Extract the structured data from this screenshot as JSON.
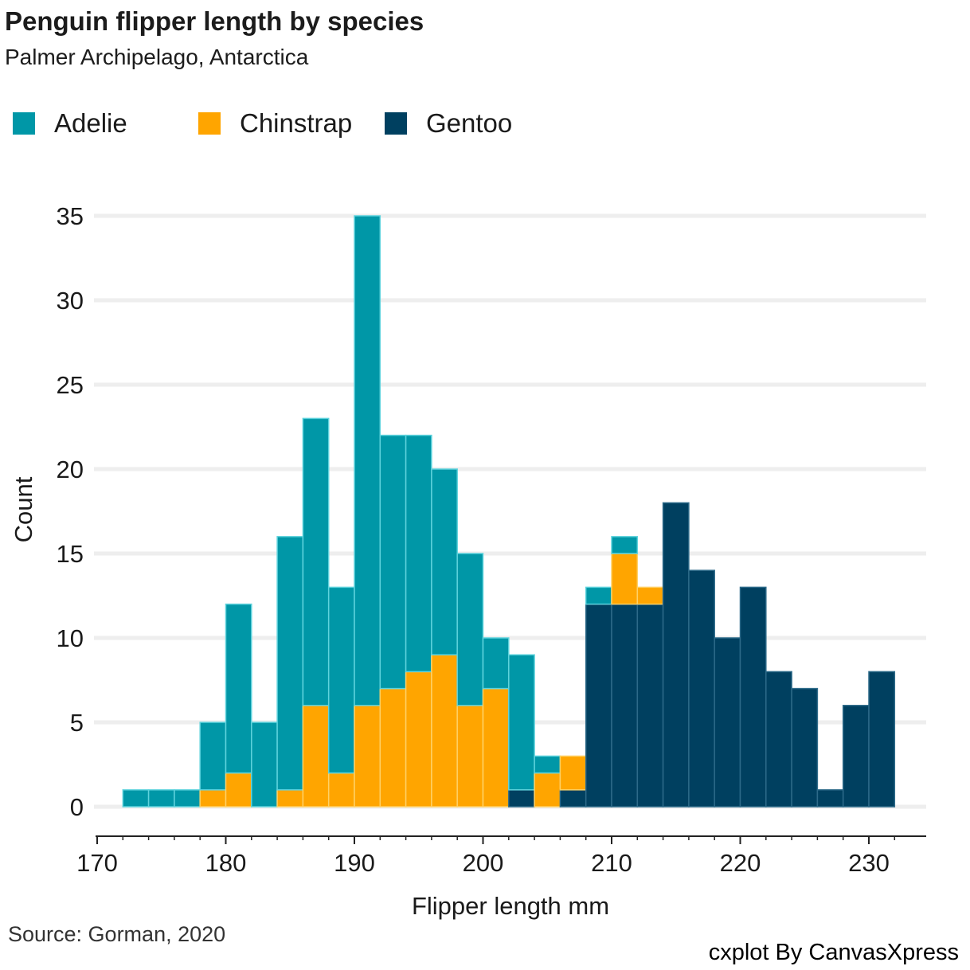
{
  "title": "Penguin flipper length by species",
  "subtitle": "Palmer Archipelago, Antarctica",
  "source": "Source: Gorman, 2020",
  "credit": "cxplot By CanvasXpress",
  "colors": {
    "Adelie": "#0097a7",
    "Chinstrap": "#ffa500",
    "Gentoo": "#004060",
    "grid": "#eeeeee",
    "axis": "#222222"
  },
  "chart_data": {
    "type": "bar",
    "stacked": true,
    "bin_width": 2,
    "xlabel": "Flipper length mm",
    "ylabel": "Count",
    "xlim": [
      170,
      234
    ],
    "ylim": [
      0,
      35
    ],
    "xticks": [
      170,
      180,
      190,
      200,
      210,
      220,
      230
    ],
    "yticks": [
      0,
      5,
      10,
      15,
      20,
      25,
      30,
      35
    ],
    "legend_position": "top-left",
    "bins": [
      172,
      174,
      176,
      178,
      180,
      182,
      184,
      186,
      188,
      190,
      192,
      194,
      196,
      198,
      200,
      202,
      204,
      206,
      208,
      210,
      212,
      214,
      216,
      218,
      220,
      222,
      224,
      226,
      228,
      230
    ],
    "series": [
      {
        "name": "Gentoo",
        "values": [
          0,
          0,
          0,
          0,
          0,
          0,
          0,
          0,
          0,
          0,
          0,
          0,
          0,
          0,
          0,
          1,
          0,
          1,
          12,
          12,
          12,
          18,
          14,
          10,
          13,
          8,
          7,
          1,
          6,
          8
        ]
      },
      {
        "name": "Chinstrap",
        "values": [
          0,
          0,
          0,
          1,
          2,
          0,
          1,
          6,
          2,
          6,
          7,
          8,
          9,
          6,
          7,
          0,
          2,
          2,
          0,
          3,
          1,
          0,
          0,
          0,
          0,
          0,
          0,
          0,
          0,
          0
        ]
      },
      {
        "name": "Adelie",
        "values": [
          1,
          1,
          1,
          4,
          10,
          5,
          15,
          17,
          11,
          29,
          15,
          14,
          11,
          9,
          3,
          8,
          1,
          0,
          1,
          1,
          0,
          0,
          0,
          0,
          0,
          0,
          0,
          0,
          0,
          0
        ]
      }
    ],
    "legend_order": [
      "Adelie",
      "Chinstrap",
      "Gentoo"
    ]
  }
}
